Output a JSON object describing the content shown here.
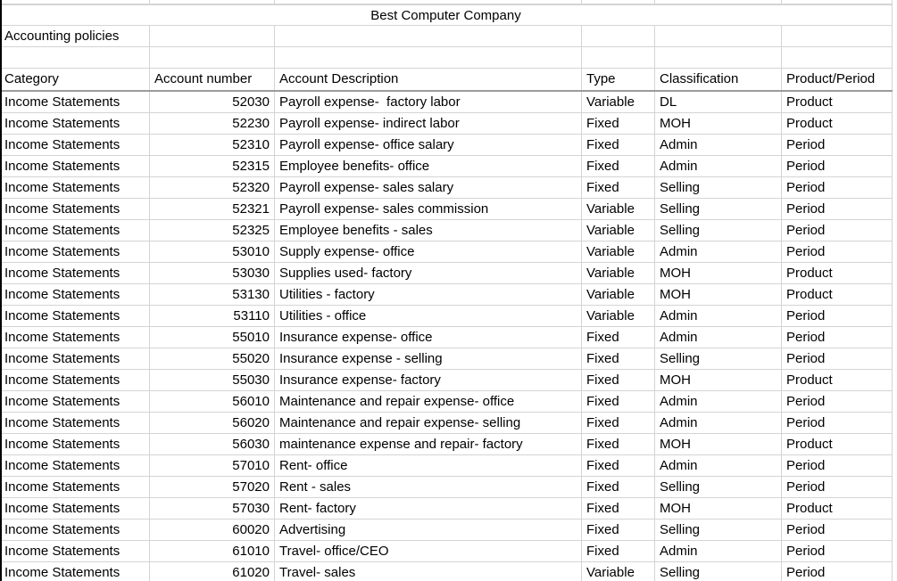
{
  "sheet": {
    "title": "Best Computer Company",
    "subtitle": "Accounting policies",
    "columns": [
      "Category",
      "Account number",
      "Account Description",
      "Type",
      "Classification",
      "Product/Period"
    ],
    "rows": [
      {
        "category": "Income Statements",
        "account": "52030",
        "description": "Payroll expense-  factory labor",
        "type": "Variable",
        "classification": "DL",
        "product_period": "Product"
      },
      {
        "category": "Income Statements",
        "account": "52230",
        "description": "Payroll expense- indirect labor",
        "type": "Fixed",
        "classification": "MOH",
        "product_period": "Product"
      },
      {
        "category": "Income Statements",
        "account": "52310",
        "description": "Payroll expense- office salary",
        "type": "Fixed",
        "classification": "Admin",
        "product_period": "Period"
      },
      {
        "category": "Income Statements",
        "account": "52315",
        "description": "Employee benefits- office",
        "type": "Fixed",
        "classification": "Admin",
        "product_period": "Period"
      },
      {
        "category": "Income Statements",
        "account": "52320",
        "description": "Payroll expense- sales salary",
        "type": "Fixed",
        "classification": "Selling",
        "product_period": "Period"
      },
      {
        "category": "Income Statements",
        "account": "52321",
        "description": "Payroll expense- sales commission",
        "type": "Variable",
        "classification": "Selling",
        "product_period": "Period"
      },
      {
        "category": "Income Statements",
        "account": "52325",
        "description": "Employee benefits - sales",
        "type": "Variable",
        "classification": "Selling",
        "product_period": "Period"
      },
      {
        "category": "Income Statements",
        "account": "53010",
        "description": "Supply expense- office",
        "type": "Variable",
        "classification": "Admin",
        "product_period": "Period"
      },
      {
        "category": "Income Statements",
        "account": "53030",
        "description": "Supplies used- factory",
        "type": "Variable",
        "classification": "MOH",
        "product_period": "Product"
      },
      {
        "category": "Income Statements",
        "account": "53130",
        "description": "Utilities - factory",
        "type": "Variable",
        "classification": "MOH",
        "product_period": "Product"
      },
      {
        "category": "Income Statements",
        "account": "53110",
        "description": "Utilities - office",
        "type": "Variable",
        "classification": "Admin",
        "product_period": "Period"
      },
      {
        "category": "Income Statements",
        "account": "55010",
        "description": "Insurance expense- office",
        "type": "Fixed",
        "classification": "Admin",
        "product_period": "Period"
      },
      {
        "category": "Income Statements",
        "account": "55020",
        "description": "Insurance expense - selling",
        "type": "Fixed",
        "classification": "Selling",
        "product_period": "Period"
      },
      {
        "category": "Income Statements",
        "account": "55030",
        "description": "Insurance expense- factory",
        "type": "Fixed",
        "classification": "MOH",
        "product_period": "Product"
      },
      {
        "category": "Income Statements",
        "account": "56010",
        "description": "Maintenance and repair expense- office",
        "type": "Fixed",
        "classification": "Admin",
        "product_period": "Period"
      },
      {
        "category": "Income Statements",
        "account": "56020",
        "description": "Maintenance and repair expense- selling",
        "type": "Fixed",
        "classification": "Admin",
        "product_period": "Period"
      },
      {
        "category": "Income Statements",
        "account": "56030",
        "description": "maintenance expense and repair- factory",
        "type": "Fixed",
        "classification": "MOH",
        "product_period": "Product"
      },
      {
        "category": "Income Statements",
        "account": "57010",
        "description": "Rent- office",
        "type": "Fixed",
        "classification": "Admin",
        "product_period": "Period"
      },
      {
        "category": "Income Statements",
        "account": "57020",
        "description": "Rent - sales",
        "type": "Fixed",
        "classification": "Selling",
        "product_period": "Period"
      },
      {
        "category": "Income Statements",
        "account": "57030",
        "description": "Rent- factory",
        "type": "Fixed",
        "classification": "MOH",
        "product_period": "Product"
      },
      {
        "category": "Income Statements",
        "account": "60020",
        "description": "Advertising",
        "type": "Fixed",
        "classification": "Selling",
        "product_period": "Period"
      },
      {
        "category": "Income Statements",
        "account": "61010",
        "description": "Travel- office/CEO",
        "type": "Fixed",
        "classification": "Admin",
        "product_period": "Period"
      },
      {
        "category": "Income Statements",
        "account": "61020",
        "description": "Travel- sales",
        "type": "Variable",
        "classification": "Selling",
        "product_period": "Period"
      }
    ],
    "colors": {
      "gridline": "#d4d4d4",
      "header_border": "#9b9b9b",
      "left_border": "#000000",
      "text": "#000000",
      "background": "#ffffff"
    }
  }
}
